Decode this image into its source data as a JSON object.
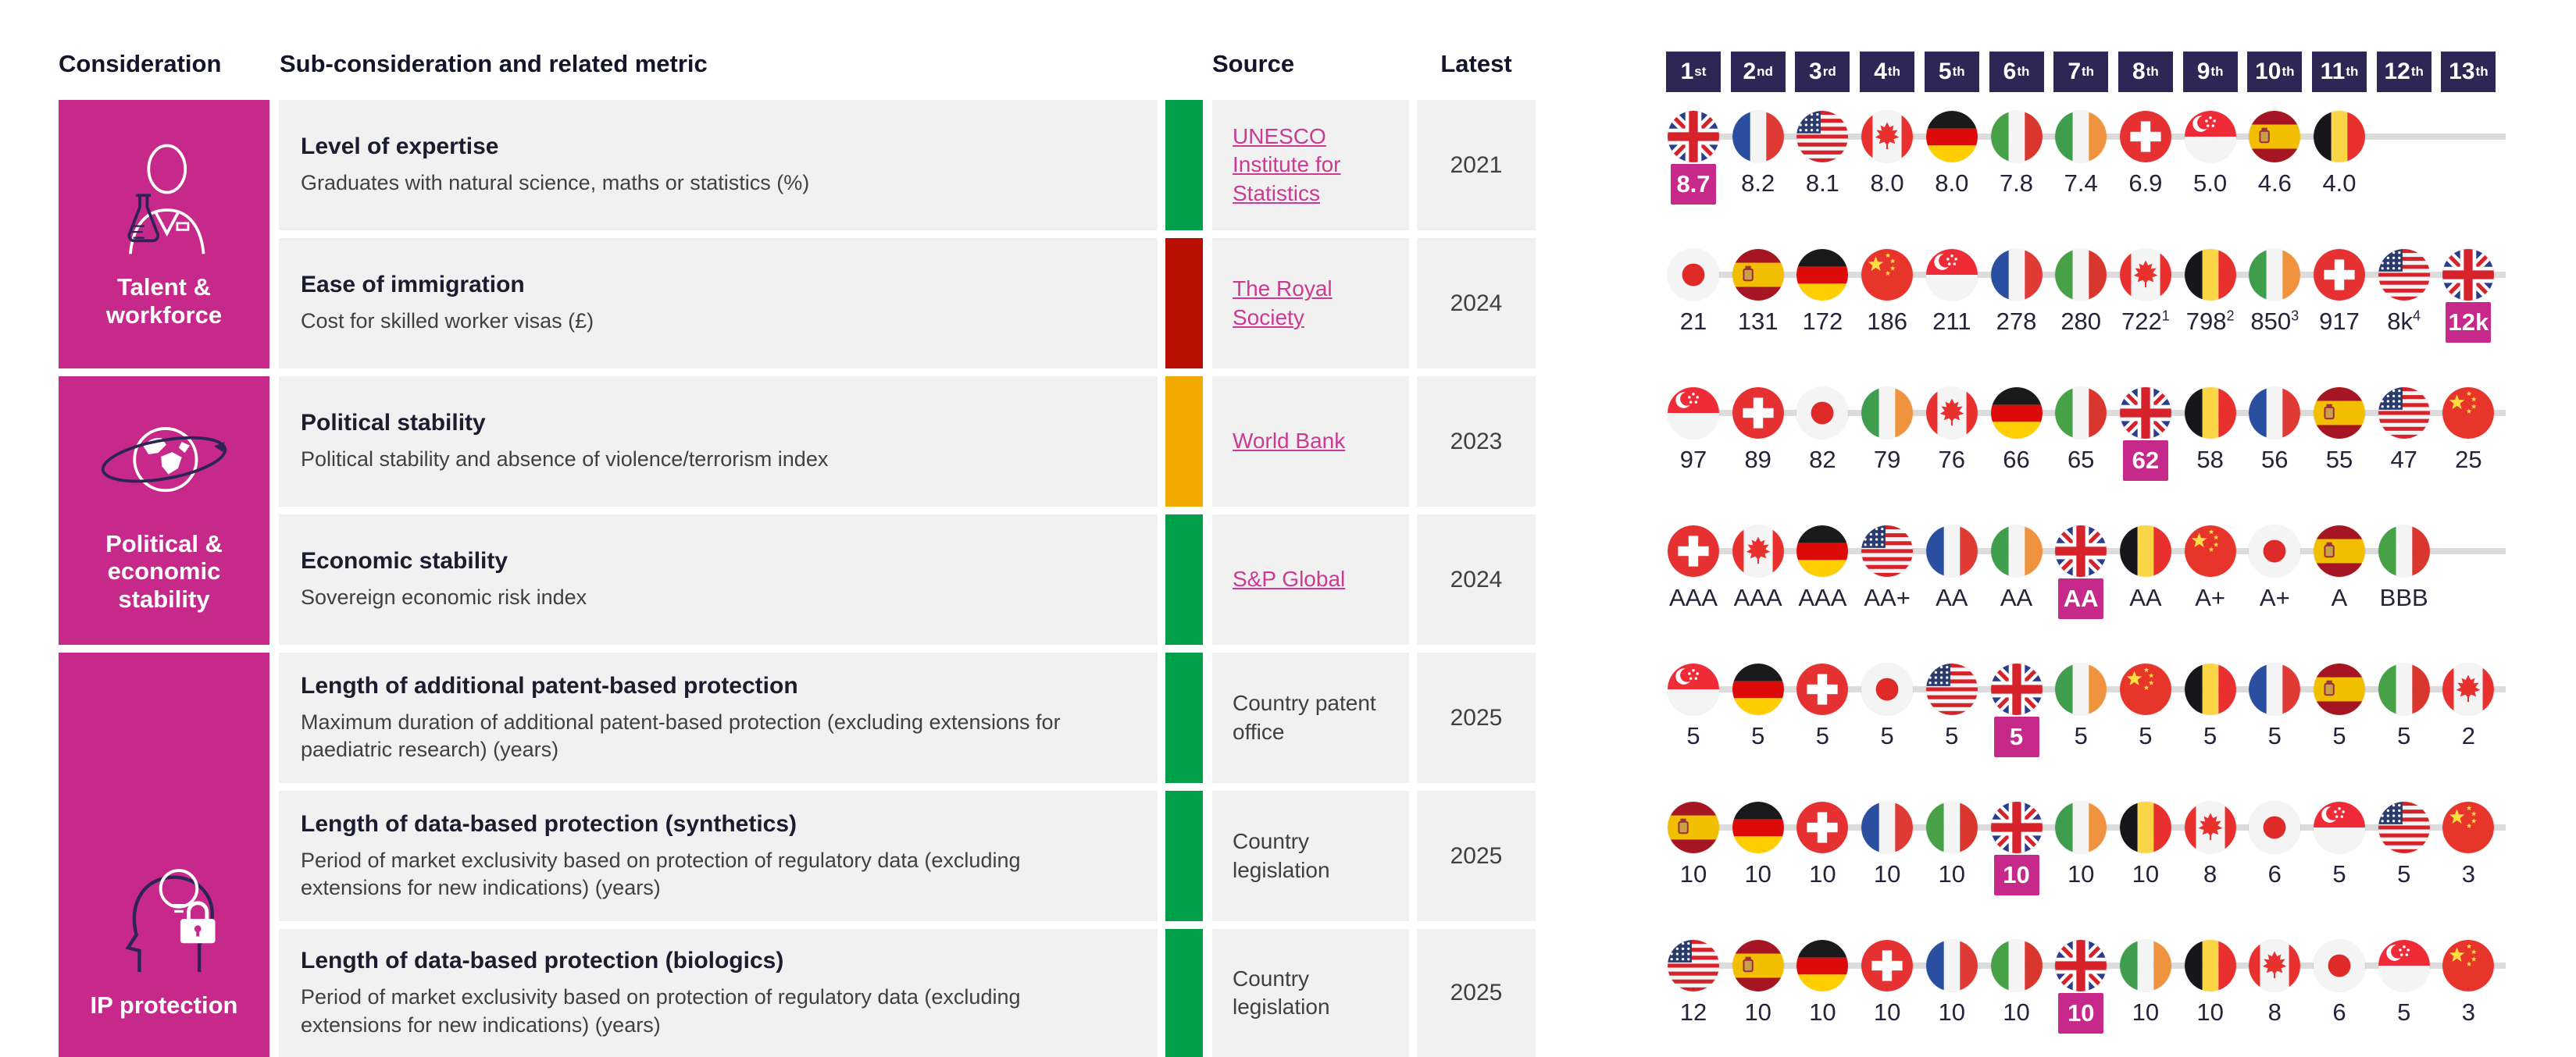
{
  "header": {
    "consideration": "Consideration",
    "sub_consideration": "Sub-consideration and related metric",
    "source": "Source",
    "latest": "Latest",
    "ranks": [
      {
        "n": "1",
        "s": "st"
      },
      {
        "n": "2",
        "s": "nd"
      },
      {
        "n": "3",
        "s": "rd"
      },
      {
        "n": "4",
        "s": "th"
      },
      {
        "n": "5",
        "s": "th"
      },
      {
        "n": "6",
        "s": "th"
      },
      {
        "n": "7",
        "s": "th"
      },
      {
        "n": "8",
        "s": "th"
      },
      {
        "n": "9",
        "s": "th"
      },
      {
        "n": "10",
        "s": "th"
      },
      {
        "n": "11",
        "s": "th"
      },
      {
        "n": "12",
        "s": "th"
      },
      {
        "n": "13",
        "s": "th"
      }
    ]
  },
  "considerations": [
    {
      "label": "Talent & workforce",
      "icon": "scientist-flask-icon",
      "row_start": 0,
      "row_end": 1
    },
    {
      "label": "Political & economic stability",
      "icon": "globe-orbit-icon",
      "row_start": 2,
      "row_end": 3
    },
    {
      "label": "IP protection",
      "icon": "head-idea-lock-icon",
      "row_start": 4,
      "row_end": 6
    }
  ],
  "chart_data": {
    "type": "table",
    "rows": [
      {
        "title": "Level of expertise",
        "metric": "Graduates with natural science, maths or statistics (%)",
        "status": "green",
        "source": {
          "label": "UNESCO Institute for Statistics",
          "link": true
        },
        "latest": "2021",
        "entries": [
          {
            "country": "UK",
            "flag": "gb",
            "value": "8.7",
            "highlight": true
          },
          {
            "country": "France",
            "flag": "fr",
            "value": "8.2"
          },
          {
            "country": "USA",
            "flag": "us",
            "value": "8.1"
          },
          {
            "country": "Canada",
            "flag": "ca",
            "value": "8.0"
          },
          {
            "country": "Germany",
            "flag": "de",
            "value": "8.0"
          },
          {
            "country": "Italy",
            "flag": "it",
            "value": "7.8"
          },
          {
            "country": "Ireland",
            "flag": "ie",
            "value": "7.4"
          },
          {
            "country": "Switzerland",
            "flag": "ch",
            "value": "6.9"
          },
          {
            "country": "Singapore",
            "flag": "sg",
            "value": "5.0"
          },
          {
            "country": "Spain",
            "flag": "es",
            "value": "4.6"
          },
          {
            "country": "Belgium",
            "flag": "be",
            "value": "4.0"
          }
        ]
      },
      {
        "title": "Ease of immigration",
        "metric": "Cost for skilled worker visas (£)",
        "status": "red",
        "source": {
          "label": "The Royal Society",
          "link": true
        },
        "latest": "2024",
        "entries": [
          {
            "country": "Japan",
            "flag": "jp",
            "value": "21"
          },
          {
            "country": "Spain",
            "flag": "es",
            "value": "131"
          },
          {
            "country": "Germany",
            "flag": "de",
            "value": "172"
          },
          {
            "country": "China",
            "flag": "cn",
            "value": "186"
          },
          {
            "country": "Singapore",
            "flag": "sg",
            "value": "211"
          },
          {
            "country": "France",
            "flag": "fr",
            "value": "278"
          },
          {
            "country": "Italy",
            "flag": "it",
            "value": "280"
          },
          {
            "country": "Canada",
            "flag": "ca",
            "value": "722",
            "sup": "1"
          },
          {
            "country": "Belgium",
            "flag": "be",
            "value": "798",
            "sup": "2"
          },
          {
            "country": "Ireland",
            "flag": "ie",
            "value": "850",
            "sup": "3"
          },
          {
            "country": "Switzerland",
            "flag": "ch",
            "value": "917"
          },
          {
            "country": "USA",
            "flag": "us",
            "value": "8k",
            "sup": "4"
          },
          {
            "country": "UK",
            "flag": "gb",
            "value": "12k",
            "highlight": true
          }
        ]
      },
      {
        "title": "Political stability",
        "metric": "Political stability and absence of violence/terrorism index",
        "status": "amber",
        "source": {
          "label": "World Bank",
          "link": true
        },
        "latest": "2023",
        "entries": [
          {
            "country": "Singapore",
            "flag": "sg",
            "value": "97"
          },
          {
            "country": "Switzerland",
            "flag": "ch",
            "value": "89"
          },
          {
            "country": "Japan",
            "flag": "jp",
            "value": "82"
          },
          {
            "country": "Ireland",
            "flag": "ie",
            "value": "79"
          },
          {
            "country": "Canada",
            "flag": "ca",
            "value": "76"
          },
          {
            "country": "Germany",
            "flag": "de",
            "value": "66"
          },
          {
            "country": "Italy",
            "flag": "it",
            "value": "65"
          },
          {
            "country": "UK",
            "flag": "gb",
            "value": "62",
            "highlight": true
          },
          {
            "country": "Belgium",
            "flag": "be",
            "value": "58"
          },
          {
            "country": "France",
            "flag": "fr",
            "value": "56"
          },
          {
            "country": "Spain",
            "flag": "es",
            "value": "55"
          },
          {
            "country": "USA",
            "flag": "us",
            "value": "47"
          },
          {
            "country": "China",
            "flag": "cn",
            "value": "25"
          }
        ]
      },
      {
        "title": "Economic stability",
        "metric": "Sovereign economic risk index",
        "status": "green",
        "source": {
          "label": "S&P Global",
          "link": true
        },
        "latest": "2024",
        "entries": [
          {
            "country": "Switzerland",
            "flag": "ch",
            "value": "AAA"
          },
          {
            "country": "Canada",
            "flag": "ca",
            "value": "AAA"
          },
          {
            "country": "Germany",
            "flag": "de",
            "value": "AAA"
          },
          {
            "country": "USA",
            "flag": "us",
            "value": "AA+"
          },
          {
            "country": "France",
            "flag": "fr",
            "value": "AA"
          },
          {
            "country": "Ireland",
            "flag": "ie",
            "value": "AA"
          },
          {
            "country": "UK",
            "flag": "gb",
            "value": "AA",
            "highlight": true
          },
          {
            "country": "Belgium",
            "flag": "be",
            "value": "AA"
          },
          {
            "country": "China",
            "flag": "cn",
            "value": "A+"
          },
          {
            "country": "Japan",
            "flag": "jp",
            "value": "A+"
          },
          {
            "country": "Spain",
            "flag": "es",
            "value": "A"
          },
          {
            "country": "Italy",
            "flag": "it",
            "value": "BBB"
          }
        ]
      },
      {
        "title": "Length of additional patent-based protection",
        "metric": "Maximum duration of additional patent-based protection (excluding extensions for paediatric research) (years)",
        "status": "green",
        "source": {
          "label": "Country patent office",
          "link": false
        },
        "latest": "2025",
        "entries": [
          {
            "country": "Singapore",
            "flag": "sg",
            "value": "5"
          },
          {
            "country": "Germany",
            "flag": "de",
            "value": "5"
          },
          {
            "country": "Switzerland",
            "flag": "ch",
            "value": "5"
          },
          {
            "country": "Japan",
            "flag": "jp",
            "value": "5"
          },
          {
            "country": "USA",
            "flag": "us",
            "value": "5"
          },
          {
            "country": "UK",
            "flag": "gb",
            "value": "5",
            "highlight": true
          },
          {
            "country": "Ireland",
            "flag": "ie",
            "value": "5"
          },
          {
            "country": "China",
            "flag": "cn",
            "value": "5"
          },
          {
            "country": "Belgium",
            "flag": "be",
            "value": "5"
          },
          {
            "country": "France",
            "flag": "fr",
            "value": "5"
          },
          {
            "country": "Spain",
            "flag": "es",
            "value": "5"
          },
          {
            "country": "Italy",
            "flag": "it",
            "value": "5"
          },
          {
            "country": "Canada",
            "flag": "ca",
            "value": "2"
          }
        ]
      },
      {
        "title": "Length of data-based protection (synthetics)",
        "metric": "Period of market exclusivity based on protection of regulatory data (excluding extensions for new indications) (years)",
        "status": "green",
        "source": {
          "label": "Country legislation",
          "link": false
        },
        "latest": "2025",
        "entries": [
          {
            "country": "Spain",
            "flag": "es",
            "value": "10"
          },
          {
            "country": "Germany",
            "flag": "de",
            "value": "10"
          },
          {
            "country": "Switzerland",
            "flag": "ch",
            "value": "10"
          },
          {
            "country": "France",
            "flag": "fr",
            "value": "10"
          },
          {
            "country": "Italy",
            "flag": "it",
            "value": "10"
          },
          {
            "country": "UK",
            "flag": "gb",
            "value": "10",
            "highlight": true
          },
          {
            "country": "Ireland",
            "flag": "ie",
            "value": "10"
          },
          {
            "country": "Belgium",
            "flag": "be",
            "value": "10"
          },
          {
            "country": "Canada",
            "flag": "ca",
            "value": "8"
          },
          {
            "country": "Japan",
            "flag": "jp",
            "value": "6"
          },
          {
            "country": "Singapore",
            "flag": "sg",
            "value": "5"
          },
          {
            "country": "USA",
            "flag": "us",
            "value": "5"
          },
          {
            "country": "China",
            "flag": "cn",
            "value": "3"
          }
        ]
      },
      {
        "title": "Length of data-based protection (biologics)",
        "metric": "Period of market exclusivity based on protection of regulatory data (excluding extensions for new indications) (years)",
        "status": "green",
        "source": {
          "label": "Country legislation",
          "link": false
        },
        "latest": "2025",
        "entries": [
          {
            "country": "USA",
            "flag": "us",
            "value": "12"
          },
          {
            "country": "Spain",
            "flag": "es",
            "value": "10"
          },
          {
            "country": "Germany",
            "flag": "de",
            "value": "10"
          },
          {
            "country": "Switzerland",
            "flag": "ch",
            "value": "10"
          },
          {
            "country": "France",
            "flag": "fr",
            "value": "10"
          },
          {
            "country": "Italy",
            "flag": "it",
            "value": "10"
          },
          {
            "country": "UK",
            "flag": "gb",
            "value": "10",
            "highlight": true
          },
          {
            "country": "Ireland",
            "flag": "ie",
            "value": "10"
          },
          {
            "country": "Belgium",
            "flag": "be",
            "value": "10"
          },
          {
            "country": "Canada",
            "flag": "ca",
            "value": "8"
          },
          {
            "country": "Japan",
            "flag": "jp",
            "value": "6"
          },
          {
            "country": "Singapore",
            "flag": "sg",
            "value": "5"
          },
          {
            "country": "China",
            "flag": "cn",
            "value": "3"
          }
        ]
      }
    ]
  },
  "colors": {
    "magenta": "#C6298A",
    "rank_badge_bg": "#2E2655",
    "green": "#00A04B",
    "red": "#B90E02",
    "amber": "#F2A900",
    "cell_bg": "#F1F1F1",
    "track": "#DCDCDC",
    "link": "#CC3A92",
    "title_text": "#1C1C30",
    "body_text": "#404040"
  }
}
